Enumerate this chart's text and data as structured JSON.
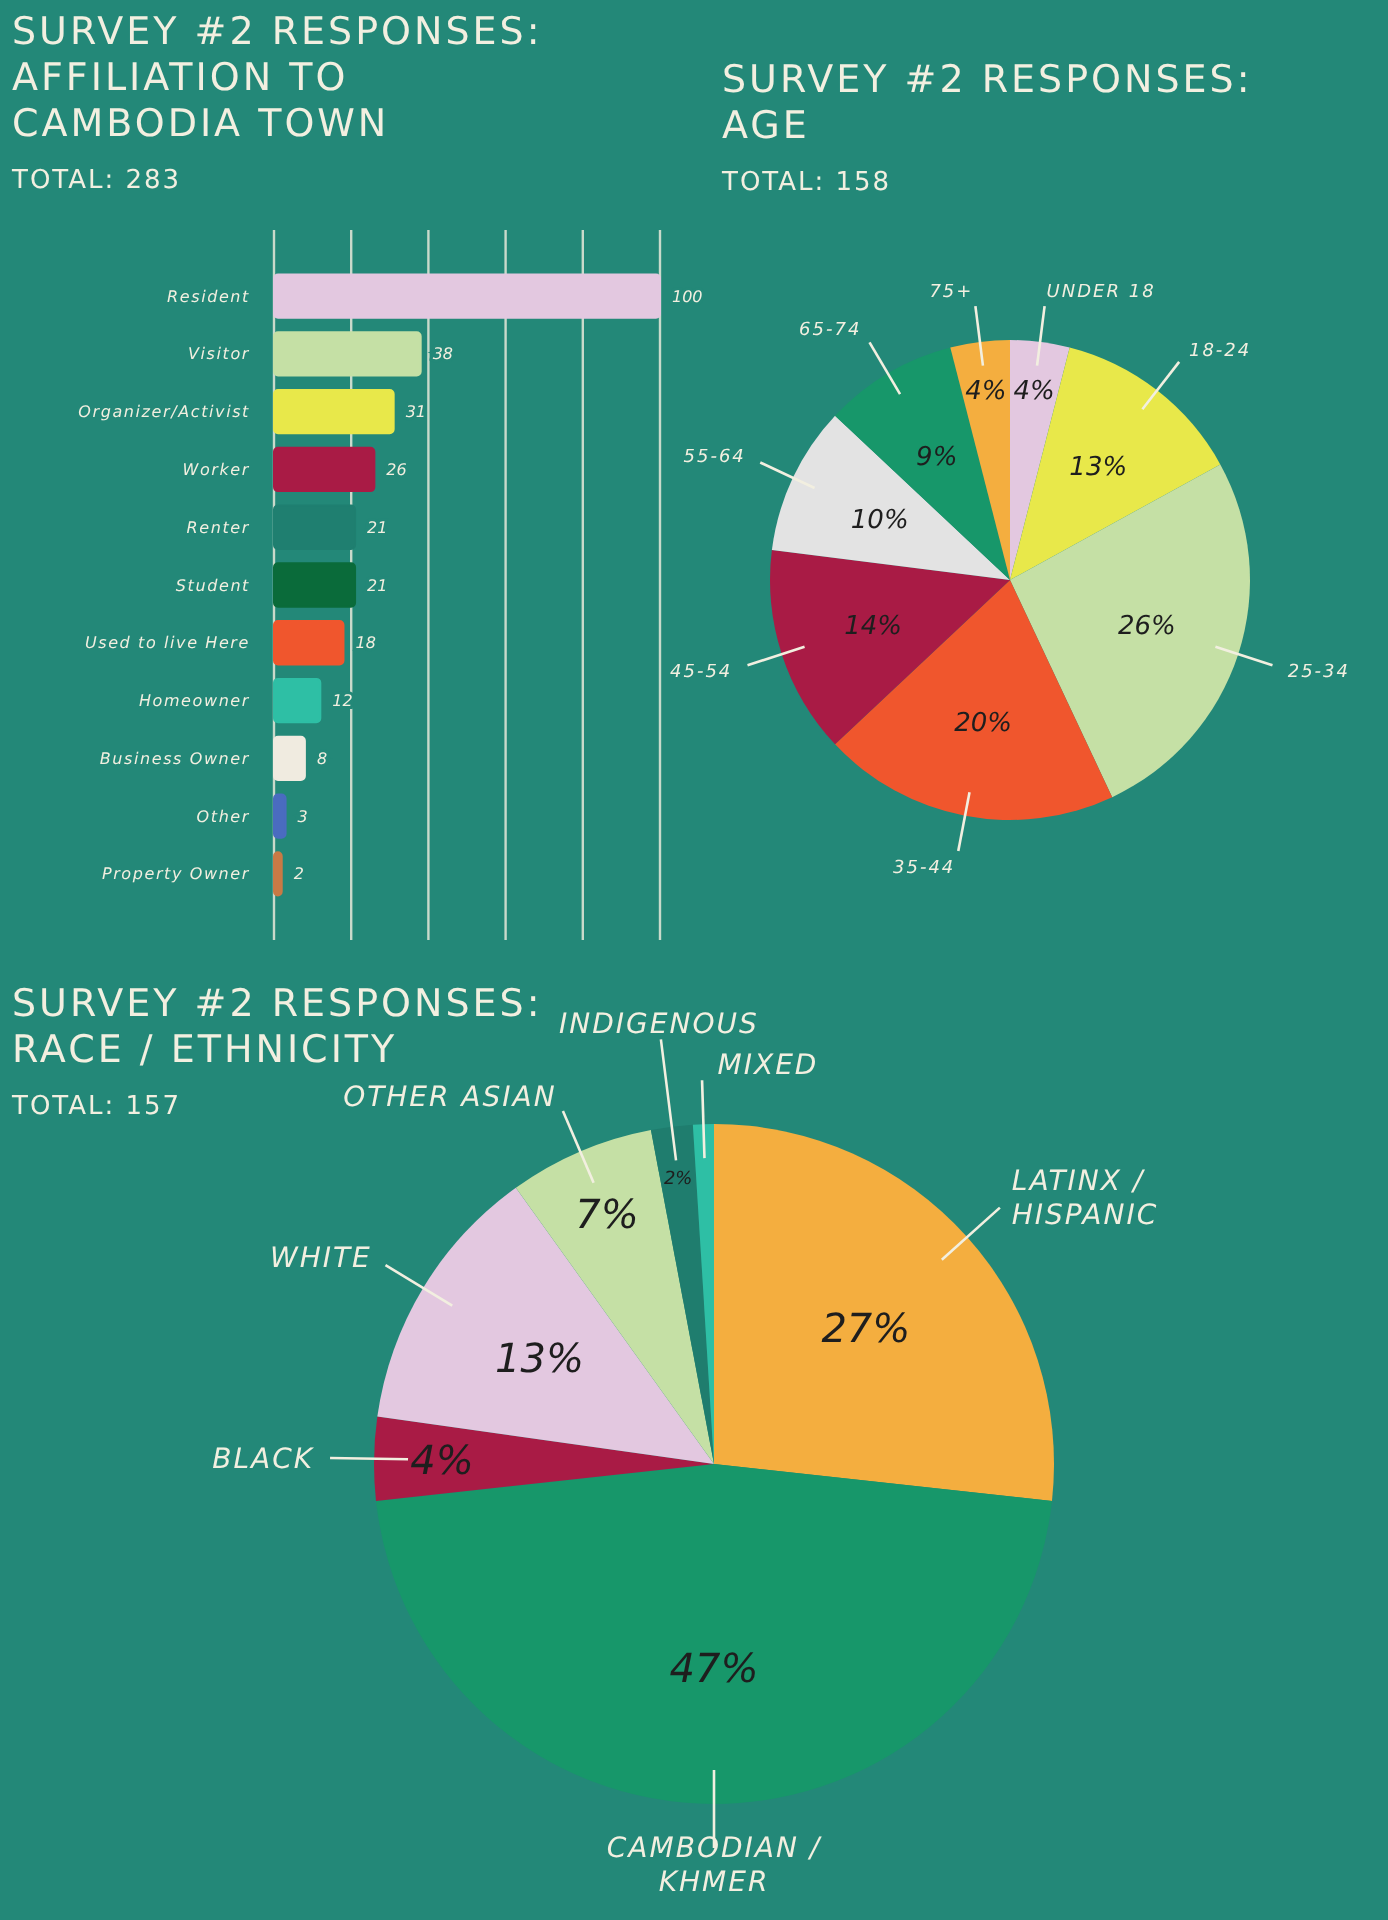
{
  "chart_data": [
    {
      "type": "bar",
      "orientation": "horizontal",
      "title": "SURVEY #2 RESPONSES: AFFILIATION TO CAMBODIA TOWN",
      "subtitle": "TOTAL: 283",
      "categories": [
        "Resident",
        "Visitor",
        "Organizer/Activist",
        "Worker",
        "Renter",
        "Student",
        "Used to live Here",
        "Homeowner",
        "Business Owner",
        "Other",
        "Property Owner"
      ],
      "values": [
        100,
        38,
        31,
        26,
        21,
        21,
        18,
        12,
        8,
        3,
        2
      ],
      "colors": [
        "#e3c8e0",
        "#c5e0a5",
        "#e8e84a",
        "#a91b45",
        "#1f7f70",
        "#0a6b3a",
        "#f0562d",
        "#2ebfa5",
        "#f0ebe0",
        "#4a6cc0",
        "#c97a45"
      ],
      "xlim": [
        0,
        100
      ],
      "xticks": [
        {
          "value": 0,
          "label": null
        },
        {
          "value": 20,
          "label": null
        },
        {
          "value": 40,
          "label": null
        },
        {
          "value": 60,
          "label": null
        },
        {
          "value": 80,
          "label": null
        },
        {
          "value": 100,
          "label": null
        }
      ],
      "grid": "x",
      "data_labels": true
    },
    {
      "type": "pie",
      "title": "SURVEY #2 RESPONSES: AGE",
      "subtitle": "TOTAL: 158",
      "categories": [
        "UNDER 18",
        "18-24",
        "25-34",
        "35-44",
        "45-54",
        "55-64",
        "65-74",
        "75+"
      ],
      "values": [
        4,
        13,
        26,
        20,
        14,
        10,
        9,
        4
      ],
      "colors": [
        "#e3c8e0",
        "#e8e84a",
        "#c5e0a5",
        "#f0562d",
        "#a91b45",
        "#e3e3e3",
        "#17976a",
        "#f4ae3f"
      ],
      "value_labels": [
        "4%",
        "13%",
        "26%",
        "20%",
        "14%",
        "10%",
        "9%",
        "4%"
      ]
    },
    {
      "type": "pie",
      "title": "SURVEY #2 RESPONSES: RACE / ETHNICITY",
      "subtitle": "TOTAL: 157",
      "categories": [
        "LATINX / HISPANIC",
        "CAMBODIAN / KHMER",
        "BLACK",
        "WHITE",
        "OTHER ASIAN",
        "INDIGENOUS",
        "MIXED"
      ],
      "values": [
        27,
        47,
        4,
        13,
        7,
        2,
        1
      ],
      "colors": [
        "#f4ae3f",
        "#17976a",
        "#a91b45",
        "#e3c8e0",
        "#c5e0a5",
        "#1f7d6e",
        "#2ebfa5"
      ],
      "value_labels": [
        "27%",
        "47%",
        "4%",
        "13%",
        "7%",
        "2%",
        null
      ]
    }
  ]
}
